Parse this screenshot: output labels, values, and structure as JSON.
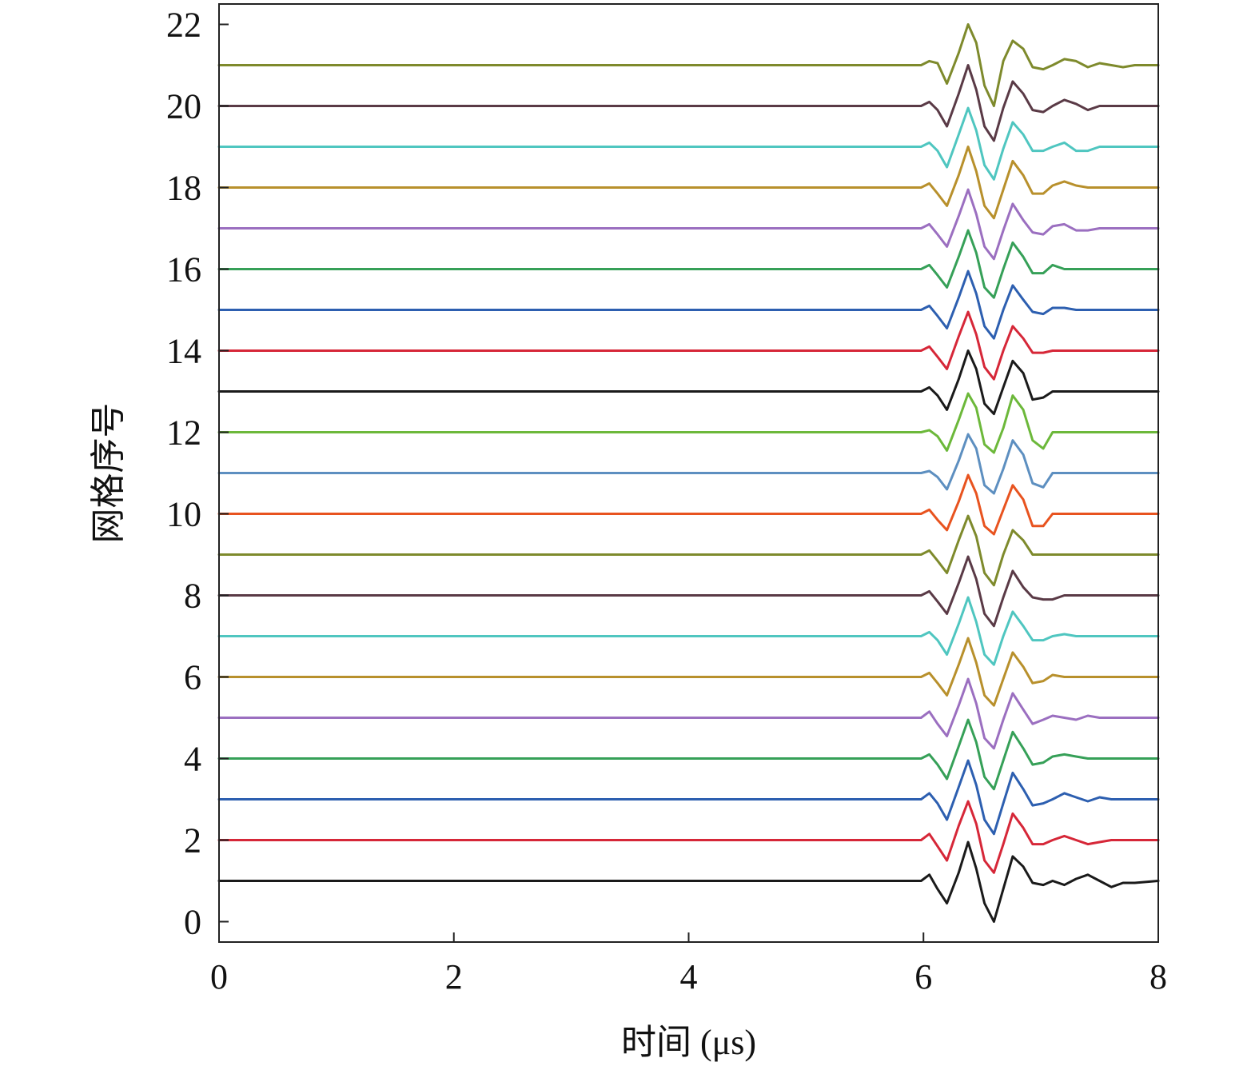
{
  "chart_data": {
    "type": "line",
    "title": "",
    "xlabel": "时间 (μs)",
    "ylabel": "网格序号",
    "xlim": [
      0,
      8
    ],
    "ylim": [
      -0.5,
      22.5
    ],
    "x_ticks": [
      0,
      2,
      4,
      6,
      8
    ],
    "y_ticks": [
      0,
      2,
      4,
      6,
      8,
      10,
      12,
      14,
      16,
      18,
      20,
      22
    ],
    "grid": false,
    "legend": "none",
    "series_colors": {
      "1": "#1a1a1a",
      "2": "#d62738",
      "3": "#2d5fb0",
      "4": "#36a058",
      "5": "#9b6fc0",
      "6": "#b8902c",
      "7": "#4fc6c0",
      "8": "#5a3a46",
      "9": "#7e8a2c",
      "10": "#e8531f",
      "11": "#5d8fc0",
      "12": "#6cb83a",
      "13": "#1a1a1a",
      "14": "#d62738",
      "15": "#2d5fb0",
      "16": "#36a058",
      "17": "#9b6fc0",
      "18": "#b8902c",
      "19": "#4fc6c0",
      "20": "#5a3a46",
      "21": "#7e8a2c"
    },
    "waveform_time_us": [
      0,
      5.98,
      6.05,
      6.12,
      6.2,
      6.3,
      6.38,
      6.45,
      6.52,
      6.6,
      6.68,
      6.76,
      6.85,
      6.93,
      7.02,
      7.1,
      7.2,
      7.3,
      7.4,
      7.5,
      7.6,
      7.7,
      7.8,
      8.0
    ],
    "series": [
      {
        "baseline": 1,
        "values": [
          0,
          0,
          0.15,
          -0.2,
          -0.55,
          0.2,
          0.95,
          0.3,
          -0.55,
          -1.0,
          -0.2,
          0.6,
          0.35,
          -0.05,
          -0.1,
          0.0,
          -0.1,
          0.05,
          0.15,
          0.0,
          -0.15,
          -0.05,
          -0.05,
          0
        ]
      },
      {
        "baseline": 2,
        "values": [
          0,
          0,
          0.15,
          -0.15,
          -0.5,
          0.35,
          0.95,
          0.4,
          -0.5,
          -0.8,
          -0.1,
          0.65,
          0.3,
          -0.1,
          -0.1,
          0.0,
          0.1,
          0.0,
          -0.1,
          -0.05,
          0,
          0,
          0,
          0
        ]
      },
      {
        "baseline": 3,
        "values": [
          0,
          0,
          0.15,
          -0.1,
          -0.5,
          0.3,
          0.95,
          0.35,
          -0.5,
          -0.85,
          -0.1,
          0.65,
          0.25,
          -0.15,
          -0.1,
          0.0,
          0.15,
          0.05,
          -0.05,
          0.05,
          0,
          0,
          0,
          0
        ]
      },
      {
        "baseline": 4,
        "values": [
          0,
          0,
          0.1,
          -0.15,
          -0.5,
          0.3,
          0.95,
          0.4,
          -0.45,
          -0.75,
          -0.05,
          0.65,
          0.25,
          -0.15,
          -0.1,
          0.05,
          0.1,
          0.05,
          0,
          0,
          0,
          0,
          0,
          0
        ]
      },
      {
        "baseline": 5,
        "values": [
          0,
          0,
          0.15,
          -0.15,
          -0.45,
          0.3,
          0.95,
          0.35,
          -0.5,
          -0.75,
          -0.05,
          0.6,
          0.2,
          -0.15,
          -0.05,
          0.05,
          0.0,
          -0.05,
          0.05,
          0,
          0,
          0,
          0,
          0
        ]
      },
      {
        "baseline": 6,
        "values": [
          0,
          0,
          0.1,
          -0.15,
          -0.45,
          0.3,
          0.95,
          0.35,
          -0.45,
          -0.7,
          -0.05,
          0.6,
          0.25,
          -0.15,
          -0.1,
          0.05,
          0.0,
          0.0,
          0,
          0,
          0,
          0,
          0,
          0
        ]
      },
      {
        "baseline": 7,
        "values": [
          0,
          0,
          0.1,
          -0.1,
          -0.45,
          0.3,
          0.95,
          0.35,
          -0.45,
          -0.7,
          0.0,
          0.6,
          0.25,
          -0.1,
          -0.1,
          0.0,
          0.05,
          0.0,
          0,
          0,
          0,
          0,
          0,
          0
        ]
      },
      {
        "baseline": 8,
        "values": [
          0,
          0,
          0.1,
          -0.15,
          -0.45,
          0.3,
          0.95,
          0.4,
          -0.45,
          -0.75,
          -0.05,
          0.6,
          0.2,
          -0.05,
          -0.1,
          -0.1,
          0.0,
          0.0,
          0,
          0,
          0,
          0,
          0,
          0
        ]
      },
      {
        "baseline": 9,
        "values": [
          0,
          0,
          0.1,
          -0.15,
          -0.45,
          0.35,
          0.95,
          0.45,
          -0.45,
          -0.75,
          0.0,
          0.6,
          0.35,
          0.0,
          0.0,
          0.0,
          0.0,
          0.0,
          0,
          0,
          0,
          0,
          0,
          0
        ]
      },
      {
        "baseline": 10,
        "values": [
          0,
          0,
          0.1,
          -0.15,
          -0.4,
          0.3,
          0.95,
          0.5,
          -0.3,
          -0.5,
          0.1,
          0.7,
          0.35,
          -0.3,
          -0.3,
          0.0,
          0.0,
          0.0,
          0,
          0,
          0,
          0,
          0,
          0
        ]
      },
      {
        "baseline": 11,
        "values": [
          0,
          0,
          0.05,
          -0.1,
          -0.4,
          0.3,
          0.95,
          0.6,
          -0.3,
          -0.5,
          0.1,
          0.8,
          0.45,
          -0.25,
          -0.35,
          0.0,
          0.0,
          0.0,
          0,
          0,
          0,
          0,
          0,
          0
        ]
      },
      {
        "baseline": 12,
        "values": [
          0,
          0,
          0.05,
          -0.1,
          -0.45,
          0.3,
          0.95,
          0.6,
          -0.3,
          -0.5,
          0.1,
          0.9,
          0.55,
          -0.2,
          -0.4,
          0.0,
          0.0,
          0.0,
          0,
          0,
          0,
          0,
          0,
          0
        ]
      },
      {
        "baseline": 13,
        "values": [
          0,
          0,
          0.1,
          -0.1,
          -0.45,
          0.3,
          1.0,
          0.55,
          -0.3,
          -0.55,
          0.1,
          0.75,
          0.45,
          -0.2,
          -0.15,
          0.0,
          0.0,
          0.0,
          0,
          0,
          0,
          0,
          0,
          0
        ]
      },
      {
        "baseline": 14,
        "values": [
          0,
          0,
          0.1,
          -0.15,
          -0.45,
          0.35,
          0.95,
          0.4,
          -0.4,
          -0.7,
          0.0,
          0.6,
          0.3,
          -0.05,
          -0.05,
          0.0,
          0.0,
          0.0,
          0,
          0,
          0,
          0,
          0,
          0
        ]
      },
      {
        "baseline": 15,
        "values": [
          0,
          0,
          0.1,
          -0.15,
          -0.45,
          0.3,
          0.95,
          0.4,
          -0.4,
          -0.7,
          0.0,
          0.6,
          0.25,
          -0.05,
          -0.1,
          0.05,
          0.05,
          0.0,
          0,
          0,
          0,
          0,
          0,
          0
        ]
      },
      {
        "baseline": 16,
        "values": [
          0,
          0,
          0.1,
          -0.15,
          -0.45,
          0.3,
          0.95,
          0.4,
          -0.45,
          -0.7,
          0.0,
          0.65,
          0.3,
          -0.1,
          -0.1,
          0.1,
          0.0,
          0.0,
          0,
          0,
          0,
          0,
          0,
          0
        ]
      },
      {
        "baseline": 17,
        "values": [
          0,
          0,
          0.1,
          -0.15,
          -0.45,
          0.3,
          0.95,
          0.35,
          -0.45,
          -0.75,
          -0.05,
          0.6,
          0.2,
          -0.1,
          -0.15,
          0.05,
          0.1,
          -0.05,
          -0.05,
          0,
          0,
          0,
          0,
          0
        ]
      },
      {
        "baseline": 18,
        "values": [
          0,
          0,
          0.1,
          -0.15,
          -0.45,
          0.3,
          1.0,
          0.4,
          -0.45,
          -0.75,
          -0.05,
          0.65,
          0.3,
          -0.15,
          -0.15,
          0.05,
          0.15,
          0.05,
          0,
          0,
          0,
          0,
          0,
          0
        ]
      },
      {
        "baseline": 19,
        "values": [
          0,
          0,
          0.1,
          -0.1,
          -0.5,
          0.3,
          0.95,
          0.4,
          -0.45,
          -0.8,
          -0.05,
          0.6,
          0.3,
          -0.1,
          -0.1,
          0.0,
          0.1,
          -0.1,
          -0.1,
          0.0,
          0,
          0,
          0,
          0
        ]
      },
      {
        "baseline": 20,
        "values": [
          0,
          0,
          0.1,
          -0.1,
          -0.5,
          0.3,
          1.0,
          0.4,
          -0.5,
          -0.85,
          -0.05,
          0.6,
          0.3,
          -0.1,
          -0.15,
          0.0,
          0.15,
          0.05,
          -0.1,
          0.0,
          0.0,
          0,
          0,
          0
        ]
      },
      {
        "baseline": 21,
        "values": [
          0,
          0,
          0.1,
          0.05,
          -0.45,
          0.3,
          1.0,
          0.55,
          -0.5,
          -1.0,
          0.1,
          0.6,
          0.4,
          -0.05,
          -0.1,
          0.0,
          0.15,
          0.1,
          -0.05,
          0.05,
          0.0,
          -0.05,
          0.0,
          0.0
        ]
      }
    ]
  }
}
